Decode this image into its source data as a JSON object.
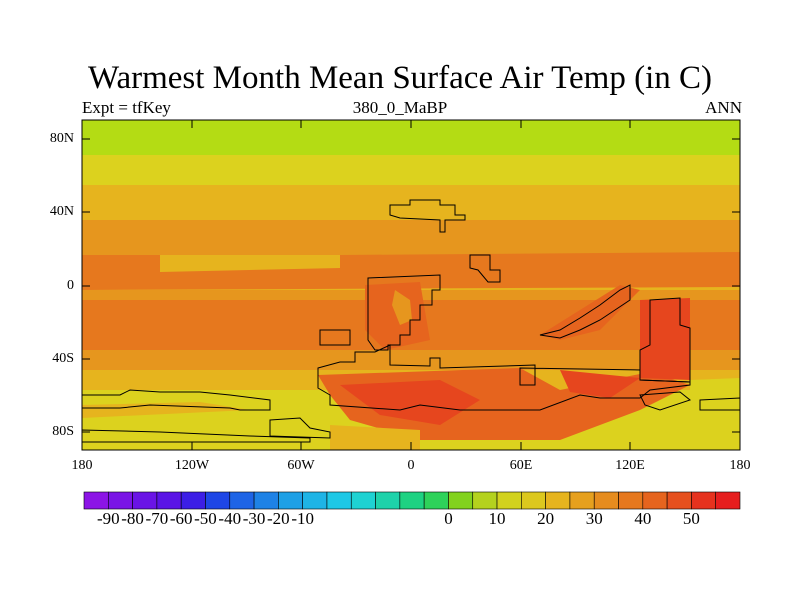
{
  "title": "Warmest Month Mean Surface Air Temp (in C)",
  "subtitle_left": "Expt = tfKey",
  "subtitle_center": "380_0_MaBP",
  "subtitle_right": "ANN",
  "y_ticks": [
    "80N",
    "40N",
    "0",
    "40S",
    "80S"
  ],
  "x_ticks": [
    "180",
    "120W",
    "60W",
    "0",
    "60E",
    "120E",
    "180"
  ],
  "colorbar": {
    "labels": [
      "-90",
      "-80",
      "-70",
      "-60",
      "-50",
      "-40",
      "-30",
      "-20",
      "-10",
      "0",
      "10",
      "20",
      "30",
      "40",
      "50"
    ],
    "colors": [
      "#8c14e6",
      "#7a14e6",
      "#6a14e6",
      "#5a14e6",
      "#3c1ee6",
      "#1e46e6",
      "#1e64e6",
      "#1e82e6",
      "#1ea0e6",
      "#1eb4e6",
      "#1ec8e6",
      "#1ed2d2",
      "#1ed2aa",
      "#1ed282",
      "#2ed25a",
      "#82d21e",
      "#b4d21e",
      "#d2d21e",
      "#dcc81e",
      "#e6b41e",
      "#e6a01e",
      "#e68c1e",
      "#e6781e",
      "#e6641e",
      "#e6501e",
      "#e6321e",
      "#e61e1e"
    ]
  },
  "map_colors": {
    "lime": "#b4dc14",
    "yellow": "#dcd21e",
    "amber": "#e6b41e",
    "orange": "#e6961e",
    "dark_orange": "#e6781e",
    "red_orange": "#e6641e",
    "red": "#e6461e"
  }
}
